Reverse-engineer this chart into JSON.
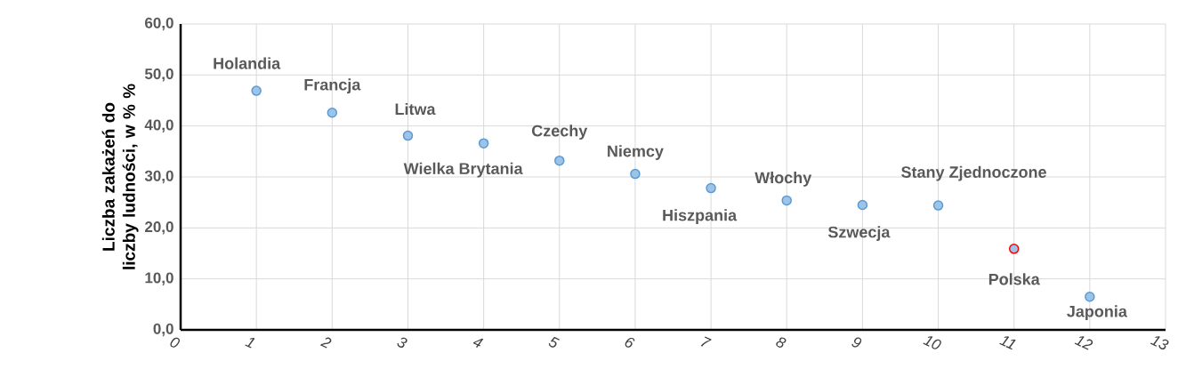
{
  "chart_data": {
    "type": "scatter",
    "ylabel": "Liczba zakażeń do liczby ludności, w % %",
    "x": [
      1,
      2,
      3,
      4,
      5,
      6,
      7,
      8,
      9,
      10,
      11,
      12
    ],
    "values": [
      46.9,
      42.6,
      38.1,
      36.6,
      33.2,
      30.6,
      27.8,
      25.4,
      24.5,
      24.4,
      15.9,
      6.5
    ],
    "colors": [
      "#5b9bd5",
      "#5b9bd5",
      "#5b9bd5",
      "#5b9bd5",
      "#5b9bd5",
      "#5b9bd5",
      "#5b9bd5",
      "#5b9bd5",
      "#5b9bd5",
      "#5b9bd5",
      "#ff0000",
      "#5b9bd5"
    ],
    "marker": "circle",
    "xlim": [
      0,
      13
    ],
    "xticks": [
      0,
      1,
      2,
      3,
      4,
      5,
      6,
      7,
      8,
      9,
      10,
      11,
      12,
      13
    ],
    "ylim": [
      0,
      60
    ],
    "yticks": [
      {
        "value": 0,
        "label": "0,0"
      },
      {
        "value": 10,
        "label": "10,0"
      },
      {
        "value": 20,
        "label": "20,0"
      },
      {
        "value": 30,
        "label": "30,0"
      },
      {
        "value": 40,
        "label": "40,0"
      },
      {
        "value": 50,
        "label": "50,0"
      },
      {
        "value": 60,
        "label": "60,0"
      }
    ],
    "grid": true,
    "annotations": [
      {
        "text": "Holandia",
        "x": 1,
        "y": 46.9
      },
      {
        "text": "Francja",
        "x": 2,
        "y": 42.6
      },
      {
        "text": "Litwa",
        "x": 3,
        "y": 38.1
      },
      {
        "text": "Wielka Brytania",
        "x": 4,
        "y": 36.6
      },
      {
        "text": "Czechy",
        "x": 5,
        "y": 33.2
      },
      {
        "text": "Niemcy",
        "x": 6,
        "y": 30.6
      },
      {
        "text": "Hiszpania",
        "x": 7,
        "y": 27.8
      },
      {
        "text": "Włochy",
        "x": 8,
        "y": 25.4
      },
      {
        "text": "Szwecja",
        "x": 9,
        "y": 24.5
      },
      {
        "text": "Stany Zjednoczone",
        "x": 10,
        "y": 24.4
      },
      {
        "text": "Polska",
        "x": 11,
        "y": 15.9
      },
      {
        "text": "Japonia",
        "x": 12,
        "y": 6.5
      }
    ]
  }
}
